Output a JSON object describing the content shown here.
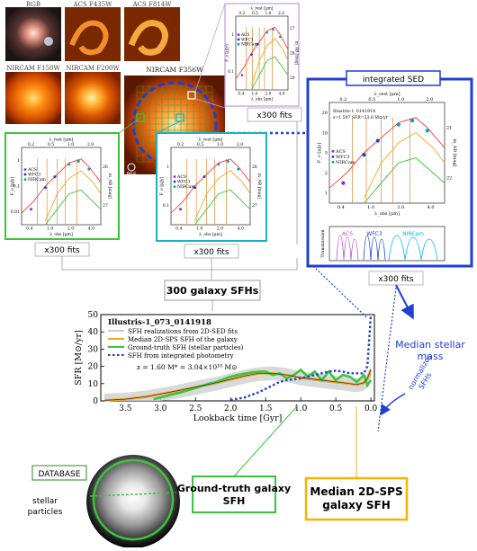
{
  "thumbnails": [
    {
      "label": "RGB"
    },
    {
      "label": "ACS F435W"
    },
    {
      "label": "ACS F814W"
    },
    {
      "label": "NIRCAM F150W"
    },
    {
      "label": "NIRCAM F200W"
    }
  ],
  "main_image": {
    "label": "NIRCAM F356W",
    "psf_label": "PSF"
  },
  "sed_axis": {
    "top_label": "λ_rest [μm]",
    "bottom_label": "λ_obs [μm]",
    "left_label": "F_ν [μJy]",
    "right_label": "m_AB [mag]",
    "top_ticks": [
      "0.2",
      "0.5",
      "1.0",
      "2.0"
    ],
    "bottom_ticks": [
      "0.4",
      "1.0",
      "2.0",
      "4.0"
    ],
    "legend": [
      "ACS",
      "WFC3",
      "NIRCam"
    ]
  },
  "panel_top": {
    "caption": "x300 fits",
    "left_ticks": [
      "1",
      "0.1"
    ],
    "right_ticks": [
      "27",
      "28",
      "29"
    ]
  },
  "panel_left": {
    "caption": "x300 fits",
    "left_ticks": [
      "1",
      "0.1",
      "0.01"
    ],
    "right_ticks": [
      "26",
      "27"
    ]
  },
  "panel_mid": {
    "caption": "x300 fits",
    "left_ticks": [
      "1",
      "0.1"
    ],
    "right_ticks": [
      "26",
      "27"
    ]
  },
  "integrated": {
    "title": "integrated SED",
    "caption": "x300 fits",
    "galaxy": "Illustris-1_0141918",
    "z_line": "z=1.597   SFR=33.8 M⊙/yr",
    "left_ticks": [
      "20",
      "10",
      "5",
      "2",
      "1"
    ],
    "right_ticks": [
      "21",
      "22"
    ],
    "transmission_label": "Transmission",
    "filters": [
      "ACS",
      "WFC3",
      "NIRCam"
    ]
  },
  "sfh_box": {
    "label": "300 galaxy SFHs"
  },
  "side": {
    "median_mass": "Median stellar mass",
    "normalizes": "normalizes SFHs"
  },
  "chart_data": {
    "type": "line",
    "title": "Illustris-1_073_0141918",
    "xlabel": "Lookback time [Gyr]",
    "ylabel": "SFR [M⊙/yr]",
    "xlim": [
      3.85,
      -0.05
    ],
    "ylim": [
      0,
      50
    ],
    "xticks": [
      3.5,
      3.0,
      2.5,
      2.0,
      1.5,
      1.0,
      0.5,
      0.0
    ],
    "yticks": [
      0,
      10,
      20,
      30,
      40,
      50
    ],
    "annotation": "z = 1.60     M* = 3.04×10¹⁰ M⊙",
    "series": [
      {
        "name": "SFH realizations from 2D-SED fits",
        "color": "#9a9a9a",
        "x": [
          3.8,
          3.5,
          3.2,
          3.0,
          2.8,
          2.5,
          2.2,
          2.0,
          1.8,
          1.6,
          1.4,
          1.2,
          1.0,
          0.8,
          0.6,
          0.4,
          0.2,
          0.1,
          0.05,
          0.0
        ],
        "y": [
          0.2,
          0.8,
          2,
          3.5,
          5,
          7.5,
          10,
          12,
          14,
          15.5,
          16,
          15,
          13,
          12,
          11,
          10,
          9,
          10,
          12,
          16
        ]
      },
      {
        "name": "Median 2D-SPS SFH of the galaxy",
        "color": "#f5a623",
        "x": [
          3.8,
          3.5,
          3.2,
          3.0,
          2.8,
          2.5,
          2.2,
          2.0,
          1.8,
          1.6,
          1.4,
          1.2,
          1.0,
          0.8,
          0.6,
          0.4,
          0.2,
          0.1,
          0.05,
          0.0
        ],
        "y": [
          0.3,
          1,
          2.5,
          4,
          5.5,
          8,
          10.5,
          12.5,
          14.5,
          16,
          16,
          15,
          13.5,
          12.5,
          11.5,
          10.5,
          9.5,
          10.5,
          13,
          18
        ]
      },
      {
        "name": "Ground-truth SFH (stellar particles)",
        "color": "#3bc43b",
        "x": [
          3.1,
          2.9,
          2.7,
          2.5,
          2.3,
          2.2,
          2.0,
          1.9,
          1.7,
          1.6,
          1.5,
          1.4,
          1.3,
          1.2,
          1.1,
          1.0,
          0.95,
          0.9,
          0.8,
          0.7,
          0.6,
          0.5,
          0.4,
          0.3,
          0.2,
          0.1,
          0.05,
          0.0
        ],
        "y": [
          1,
          3,
          5,
          7.5,
          10,
          11,
          14,
          15,
          16.5,
          17,
          17,
          15,
          16,
          13,
          15,
          18,
          16,
          14,
          17,
          12,
          17,
          12,
          15,
          14,
          11,
          15,
          9,
          12
        ]
      },
      {
        "name": "SFH from integrated photometry",
        "color": "#1f3fd1",
        "x": [
          2.0,
          1.8,
          1.6,
          1.4,
          1.3,
          1.2,
          1.0,
          0.9,
          0.8,
          0.7,
          0.6,
          0.5,
          0.4,
          0.3,
          0.2,
          0.1,
          0.05,
          0.0
        ],
        "y": [
          0.5,
          2,
          5,
          9,
          11,
          12,
          13,
          14,
          15,
          16,
          17,
          17.5,
          17,
          16,
          16,
          16,
          20,
          50
        ]
      }
    ]
  },
  "database": {
    "label": "DATABASE",
    "sublabel": "stellar particles"
  },
  "ground_truth_box": {
    "label": "Ground-truth galaxy SFH"
  },
  "median_box": {
    "label": "Median 2D-SPS galaxy SFH"
  }
}
